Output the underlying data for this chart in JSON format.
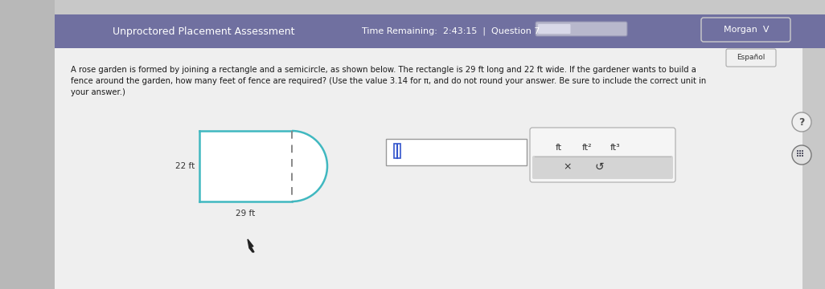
{
  "bg_outer": "#c8c8c8",
  "bg_left_strip": "#c8c8c8",
  "header_color": "#7070a0",
  "header_text": "Unproctored Placement Assessment",
  "time_text": "Time Remaining:  2:43:15  |  Question 7",
  "morgan_text": "Morgan  V",
  "espanol_text": "Español",
  "body_bg": "#efefef",
  "question_line1": "A rose garden is formed by joining a rectangle and a semicircle, as shown below. The rectangle is 29 ft long and 22 ft wide. If the gardener wants to build a",
  "question_line2": "fence around the garden, how many feet of fence are required? (Use the value 3.14 for π, and do not round your answer. Be sure to include the correct unit in",
  "question_line3": "your answer.)",
  "shape_color": "#40b8c0",
  "dashed_color": "#888888",
  "label_22": "22 ft",
  "label_29": "29 ft",
  "units": [
    "ft",
    "ft²",
    "ft³"
  ],
  "btn_x": "×",
  "btn_undo": "↺",
  "question_mark": "?",
  "progress_bar_bg": "#b8b8cc",
  "progress_bar_fill": "#d8d8e8",
  "unit_top_bg": "#f5f5f5",
  "unit_bot_bg": "#d4d4d4",
  "input_border": "#888888",
  "unit_border": "#aaaaaa",
  "morgan_border": "#cccccc"
}
